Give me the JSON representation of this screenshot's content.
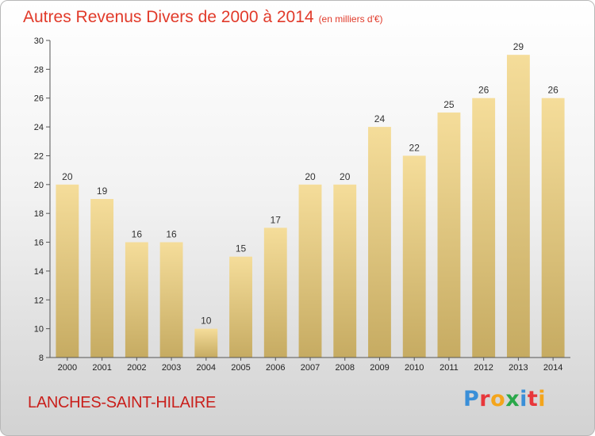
{
  "title": "Autres Revenus Divers de 2000 à 2014",
  "unit_note": "(en milliers d'€)",
  "location": "LANCHES-SAINT-HILAIRE",
  "logo": {
    "text": "Proxiti",
    "letter_colors": [
      "#3a8fd8",
      "#e8373b",
      "#f4a51c",
      "#2aa84a",
      "#3a8fd8",
      "#e8373b",
      "#f4a51c"
    ]
  },
  "colors": {
    "title": "#e13a2a",
    "location": "#c9201c",
    "bar_top": "#f5dd9a",
    "bar_bottom": "#c6ab62",
    "axis": "#555555"
  },
  "chart_data": {
    "type": "bar",
    "title": "Autres Revenus Divers de 2000 à 2014",
    "xlabel": "",
    "ylabel": "",
    "categories": [
      "2000",
      "2001",
      "2002",
      "2003",
      "2004",
      "2005",
      "2006",
      "2007",
      "2008",
      "2009",
      "2010",
      "2011",
      "2012",
      "2013",
      "2014"
    ],
    "values": [
      20,
      19,
      16,
      16,
      10,
      15,
      17,
      20,
      20,
      24,
      22,
      25,
      26,
      29,
      26
    ],
    "ylim": [
      8,
      30
    ],
    "yticks": [
      8,
      10,
      12,
      14,
      16,
      18,
      20,
      22,
      24,
      26,
      28,
      30
    ],
    "grid": false,
    "legend": "none"
  }
}
